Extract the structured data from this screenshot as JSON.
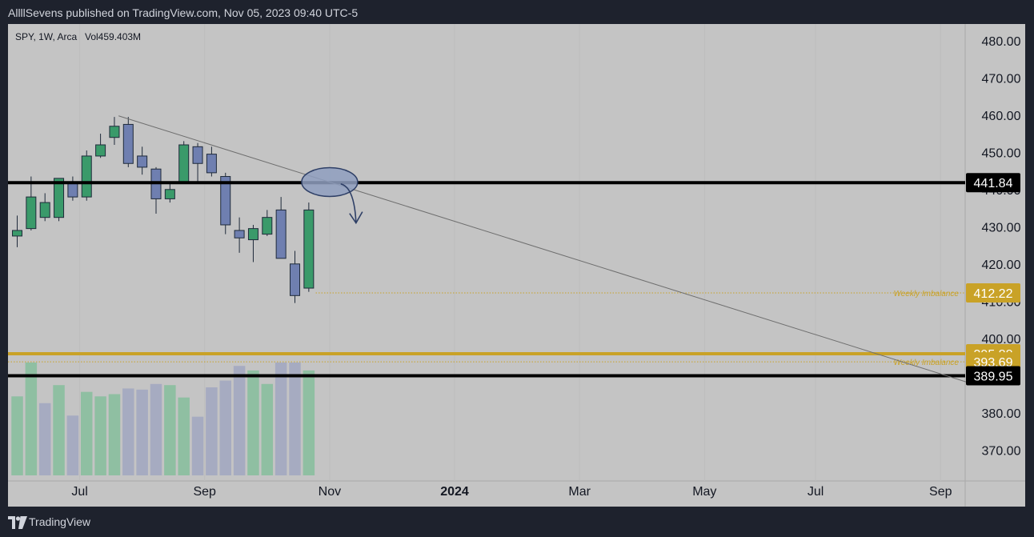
{
  "header": {
    "publish_line": "AllllSevens published on TradingView.com, Nov 05, 2023 09:40 UTC-5"
  },
  "footer": {
    "brand": "TradingView"
  },
  "legend": {
    "symbol_line": "SPY, 1W, Arca",
    "volume": "Vol459.403M"
  },
  "colors": {
    "up": "#3a9a6a",
    "down": "#6f7fb0",
    "vol_up": "#8fbfa2",
    "vol_down": "#a6abc1",
    "gold": "#c9a227",
    "black_line": "#000000",
    "panel_bg": "#c4c4c4"
  },
  "chart_data": {
    "type": "candlestick",
    "timeframe": "1W",
    "ylim": [
      362,
      482
    ],
    "y_ticks": [
      "480.00",
      "470.00",
      "460.00",
      "450.00",
      "440.00",
      "430.00",
      "420.00",
      "410.00",
      "400.00",
      "390.00",
      "380.00",
      "370.00"
    ],
    "x_ticks": [
      {
        "label": "Jul",
        "bold": false,
        "week": 4.5
      },
      {
        "label": "Sep",
        "bold": false,
        "week": 13.5
      },
      {
        "label": "Nov",
        "bold": false,
        "week": 22.5
      },
      {
        "label": "2024",
        "bold": true,
        "week": 31.5
      },
      {
        "label": "Mar",
        "bold": false,
        "week": 40.5
      },
      {
        "label": "May",
        "bold": false,
        "week": 49.5
      },
      {
        "label": "Jul",
        "bold": false,
        "week": 57.5
      },
      {
        "label": "Sep",
        "bold": false,
        "week": 66.5
      }
    ],
    "candles": [
      {
        "o": 427.5,
        "h": 433.0,
        "l": 424.5,
        "c": 429.0
      },
      {
        "o": 429.5,
        "h": 443.5,
        "l": 429.0,
        "c": 438.0
      },
      {
        "o": 432.5,
        "h": 439.0,
        "l": 431.5,
        "c": 436.5
      },
      {
        "o": 432.5,
        "h": 443.0,
        "l": 431.5,
        "c": 443.0
      },
      {
        "o": 442.0,
        "h": 443.5,
        "l": 437.0,
        "c": 438.0
      },
      {
        "o": 438.0,
        "h": 450.5,
        "l": 437.0,
        "c": 449.0
      },
      {
        "o": 449.0,
        "h": 455.0,
        "l": 448.5,
        "c": 452.0
      },
      {
        "o": 454.0,
        "h": 459.5,
        "l": 452.0,
        "c": 457.0
      },
      {
        "o": 457.5,
        "h": 459.5,
        "l": 446.0,
        "c": 447.0
      },
      {
        "o": 449.0,
        "h": 451.5,
        "l": 444.0,
        "c": 446.0
      },
      {
        "o": 445.5,
        "h": 446.0,
        "l": 433.5,
        "c": 437.5
      },
      {
        "o": 437.5,
        "h": 442.0,
        "l": 436.5,
        "c": 440.0
      },
      {
        "o": 442.0,
        "h": 453.0,
        "l": 441.5,
        "c": 452.0
      },
      {
        "o": 451.5,
        "h": 452.5,
        "l": 441.5,
        "c": 447.0
      },
      {
        "o": 449.5,
        "h": 451.5,
        "l": 443.5,
        "c": 444.5
      },
      {
        "o": 443.5,
        "h": 444.5,
        "l": 428.0,
        "c": 430.5
      },
      {
        "o": 429.0,
        "h": 432.5,
        "l": 423.0,
        "c": 427.0
      },
      {
        "o": 426.5,
        "h": 430.5,
        "l": 420.5,
        "c": 429.5
      },
      {
        "o": 428.0,
        "h": 434.5,
        "l": 427.5,
        "c": 432.5
      },
      {
        "o": 434.5,
        "h": 438.0,
        "l": 421.5,
        "c": 421.5
      },
      {
        "o": 420.0,
        "h": 423.5,
        "l": 409.5,
        "c": 411.5
      },
      {
        "o": 413.5,
        "h": 436.5,
        "l": 412.5,
        "c": 434.5
      }
    ],
    "volume": [
      {
        "v": 70,
        "up": true
      },
      {
        "v": 100,
        "up": true
      },
      {
        "v": 64,
        "up": false
      },
      {
        "v": 80,
        "up": true
      },
      {
        "v": 53,
        "up": false
      },
      {
        "v": 74,
        "up": true
      },
      {
        "v": 70,
        "up": true
      },
      {
        "v": 72,
        "up": true
      },
      {
        "v": 77,
        "up": false
      },
      {
        "v": 76,
        "up": false
      },
      {
        "v": 81,
        "up": false
      },
      {
        "v": 80,
        "up": true
      },
      {
        "v": 69,
        "up": true
      },
      {
        "v": 52,
        "up": false
      },
      {
        "v": 78,
        "up": false
      },
      {
        "v": 84,
        "up": false
      },
      {
        "v": 97,
        "up": false
      },
      {
        "v": 93,
        "up": true
      },
      {
        "v": 81,
        "up": true
      },
      {
        "v": 100,
        "up": false
      },
      {
        "v": 100,
        "up": false
      },
      {
        "v": 93,
        "up": true
      }
    ],
    "levels": [
      {
        "label": "441.84",
        "price": 441.84,
        "kind": "black"
      },
      {
        "label": "412.22",
        "price": 412.22,
        "kind": "gold-dotted",
        "annotation": "Weekly Imbalance"
      },
      {
        "label": "395.88",
        "price": 395.88,
        "kind": "gold"
      },
      {
        "label": "393.69",
        "price": 393.69,
        "kind": "gold-dotted",
        "annotation": "Weekly Imbalance"
      },
      {
        "label": "389.95",
        "price": 389.95,
        "kind": "black"
      }
    ],
    "trendline": {
      "from": {
        "week": 7.3,
        "price": 459.8
      },
      "to": {
        "week": 68.6,
        "price": 388.0
      }
    },
    "highlight_ellipse": {
      "week": 22.5,
      "price": 442.0
    },
    "projection_arrow": {
      "from_week": 23.3,
      "from_price": 441.5,
      "to_week": 24.4,
      "to_price": 431.0
    }
  }
}
